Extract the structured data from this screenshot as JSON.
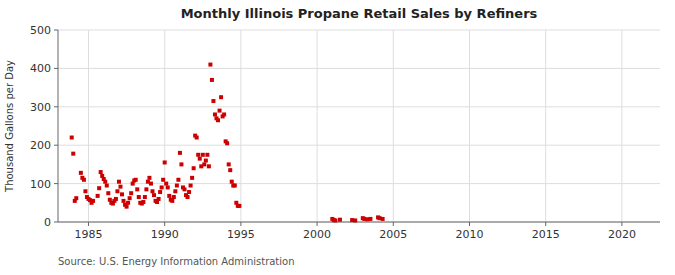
{
  "chart_data": {
    "type": "scatter",
    "title": "Monthly Illinois Propane Retail Sales by Refiners",
    "ylabel": "Thousand Gallons per Day",
    "annotations": [
      "Source: U.S. Energy Information Administration"
    ],
    "color": "#cc0000",
    "marker": "square",
    "grid": true,
    "xlim": [
      1983.0,
      2022.5
    ],
    "ylim": [
      0,
      500
    ],
    "xticks": [
      1985,
      1990,
      1995,
      2000,
      2005,
      2010,
      2015,
      2020
    ],
    "yticks": [
      0,
      100,
      200,
      300,
      400,
      500
    ],
    "x": [
      1983.9,
      1984.0,
      1984.1,
      1984.2,
      1984.5,
      1984.6,
      1984.7,
      1984.8,
      1984.9,
      1985.0,
      1985.1,
      1985.2,
      1985.3,
      1985.6,
      1985.7,
      1985.8,
      1985.9,
      1986.0,
      1986.1,
      1986.2,
      1986.3,
      1986.4,
      1986.5,
      1986.6,
      1986.7,
      1986.8,
      1986.9,
      1987.0,
      1987.1,
      1987.2,
      1987.3,
      1987.4,
      1987.5,
      1987.6,
      1987.7,
      1987.8,
      1987.9,
      1988.0,
      1988.1,
      1988.2,
      1988.3,
      1988.4,
      1988.5,
      1988.6,
      1988.7,
      1988.8,
      1988.9,
      1989.0,
      1989.1,
      1989.2,
      1989.3,
      1989.4,
      1989.5,
      1989.6,
      1989.7,
      1989.8,
      1989.9,
      1990.0,
      1990.1,
      1990.2,
      1990.3,
      1990.4,
      1990.5,
      1990.6,
      1990.7,
      1990.8,
      1990.9,
      1991.0,
      1991.1,
      1991.2,
      1991.3,
      1991.4,
      1991.5,
      1991.6,
      1991.7,
      1991.8,
      1991.9,
      1992.0,
      1992.1,
      1992.2,
      1992.3,
      1992.4,
      1992.5,
      1992.6,
      1992.7,
      1992.8,
      1992.9,
      1993.0,
      1993.1,
      1993.2,
      1993.3,
      1993.4,
      1993.5,
      1993.6,
      1993.7,
      1993.8,
      1993.9,
      1994.0,
      1994.1,
      1994.2,
      1994.3,
      1994.4,
      1994.5,
      1994.6,
      1994.7,
      1994.8,
      1994.9,
      2001.0,
      2001.1,
      2001.2,
      2001.5,
      2002.3,
      2002.5,
      2003.0,
      2003.1,
      2003.3,
      2003.5,
      2004.0,
      2004.1,
      2004.3
    ],
    "values": [
      220,
      178,
      55,
      62,
      128,
      115,
      110,
      80,
      65,
      60,
      57,
      50,
      55,
      68,
      88,
      130,
      120,
      112,
      105,
      95,
      75,
      58,
      50,
      48,
      55,
      60,
      80,
      105,
      92,
      72,
      55,
      45,
      40,
      50,
      62,
      75,
      100,
      108,
      110,
      85,
      65,
      50,
      48,
      52,
      65,
      85,
      105,
      115,
      100,
      80,
      70,
      55,
      52,
      60,
      78,
      90,
      110,
      155,
      100,
      90,
      68,
      58,
      55,
      65,
      80,
      95,
      110,
      180,
      150,
      90,
      85,
      70,
      65,
      78,
      95,
      115,
      140,
      225,
      220,
      175,
      165,
      145,
      175,
      150,
      160,
      175,
      145,
      410,
      370,
      315,
      280,
      270,
      265,
      290,
      325,
      275,
      280,
      210,
      205,
      150,
      135,
      105,
      95,
      95,
      50,
      42,
      42,
      8,
      5,
      4,
      6,
      5,
      4,
      10,
      8,
      7,
      8,
      12,
      10,
      8
    ]
  }
}
